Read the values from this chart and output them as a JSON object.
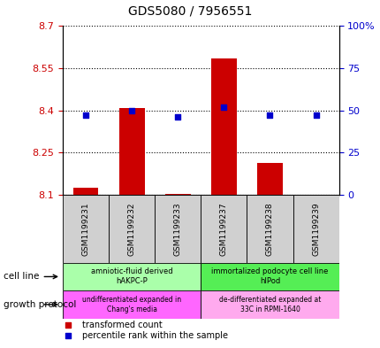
{
  "title": "GDS5080 / 7956551",
  "samples": [
    "GSM1199231",
    "GSM1199232",
    "GSM1199233",
    "GSM1199237",
    "GSM1199238",
    "GSM1199239"
  ],
  "transformed_counts": [
    8.125,
    8.41,
    8.103,
    8.585,
    8.215,
    8.101
  ],
  "percentile_ranks": [
    47,
    50,
    46,
    52,
    47,
    47
  ],
  "ylim_left": [
    8.1,
    8.7
  ],
  "ylim_right": [
    0,
    100
  ],
  "yticks_left": [
    8.1,
    8.25,
    8.4,
    8.55,
    8.7
  ],
  "ytick_labels_left": [
    "8.1",
    "8.25",
    "8.4",
    "8.55",
    "8.7"
  ],
  "yticks_right": [
    0,
    25,
    50,
    75,
    100
  ],
  "ytick_labels_right": [
    "0",
    "25",
    "50",
    "75",
    "100%"
  ],
  "bar_color": "#cc0000",
  "dot_color": "#0000cc",
  "bar_bottom": 8.1,
  "cell_line_groups": [
    {
      "label": "amniotic-fluid derived\nhAKPC-P",
      "start": 0,
      "end": 3,
      "color": "#aaffaa"
    },
    {
      "label": "immortalized podocyte cell line\nhIPod",
      "start": 3,
      "end": 6,
      "color": "#55ee55"
    }
  ],
  "growth_protocol_groups": [
    {
      "label": "undifferentiated expanded in\nChang's media",
      "start": 0,
      "end": 3,
      "color": "#ff66ff"
    },
    {
      "label": "de-differentiated expanded at\n33C in RPMI-1640",
      "start": 3,
      "end": 6,
      "color": "#ffaaee"
    }
  ],
  "cell_line_label": "cell line",
  "growth_protocol_label": "growth protocol",
  "legend_items": [
    {
      "color": "#cc0000",
      "label": "  transformed count"
    },
    {
      "color": "#0000cc",
      "label": "  percentile rank within the sample"
    }
  ],
  "bar_color_left_axis": "#cc0000",
  "bar_color_right_axis": "#0000cc",
  "title_fontsize": 10,
  "tick_fontsize": 8,
  "sample_fontsize": 6.5
}
